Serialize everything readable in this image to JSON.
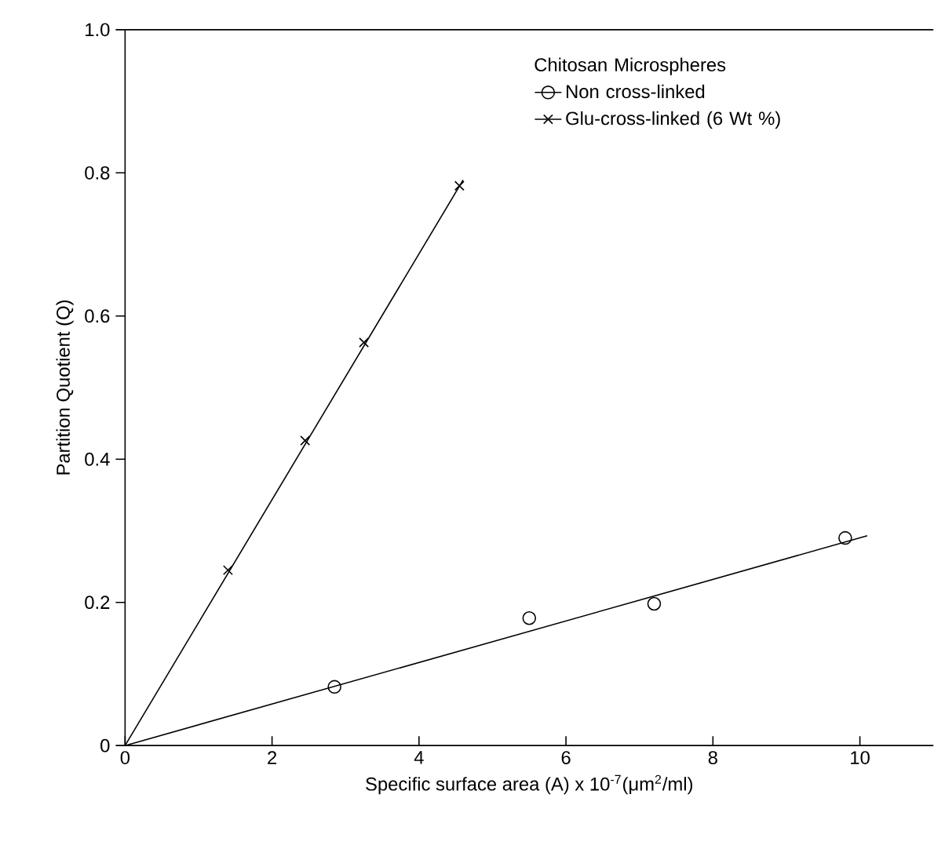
{
  "chart_data": {
    "type": "scatter",
    "xlabel": "Specific surface area (A) x 10$^{-7}$(μm$^{2}$/ml)",
    "ylabel": "Partition Quotient (Q)",
    "legend_title": "Chitosan Microspheres",
    "legend": "top right",
    "xlim": [
      0,
      11
    ],
    "ylim": [
      0,
      1.0
    ],
    "xticks": [
      0,
      2,
      4,
      6,
      8,
      10
    ],
    "yticks": [
      0,
      0.2,
      0.4,
      0.6,
      0.8,
      {
        "value": 1,
        "label": "1.0"
      }
    ],
    "series": [
      {
        "name": "Non cross-linked",
        "color": "#000000",
        "marker": "circle",
        "x": [
          2.85,
          5.5,
          7.2,
          9.8
        ],
        "values": [
          0.082,
          0.178,
          0.198,
          0.29
        ]
      },
      {
        "name": "Glu-cross-linked (6 Wt %)",
        "color": "#000000",
        "marker": "cross",
        "x": [
          1.4,
          2.45,
          3.25,
          4.55
        ],
        "values": [
          0.245,
          0.426,
          0.563,
          0.782
        ]
      },
      {
        "type": "line",
        "color": "#000000",
        "marker": "none",
        "x": [
          0,
          10.1
        ],
        "values": [
          0,
          0.293
        ]
      },
      {
        "type": "line",
        "color": "#000000",
        "marker": "none",
        "x": [
          0,
          4.6
        ],
        "values": [
          0,
          0.79
        ]
      }
    ]
  }
}
